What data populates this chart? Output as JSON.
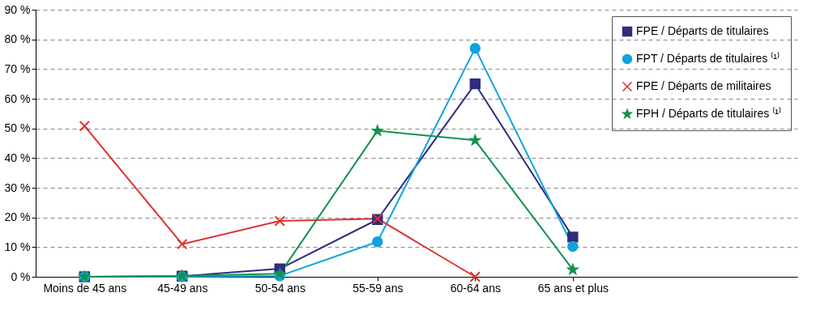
{
  "chart_data": {
    "type": "line",
    "categories": [
      "Moins de 45 ans",
      "45-49 ans",
      "50-54 ans",
      "55-59 ans",
      "60-64 ans",
      "65 ans et plus"
    ],
    "series": [
      {
        "name": "FPE / Départs de titulaires",
        "color": "#2e2d7f",
        "marker": "square",
        "values": [
          0,
          0.2,
          2.7,
          19.3,
          65,
          13.4
        ]
      },
      {
        "name": "FPT / Départs de titulaires ⁽¹⁾",
        "color": "#0fa3dc",
        "marker": "circle",
        "values": [
          0,
          0,
          0.3,
          11.8,
          77,
          10.2
        ]
      },
      {
        "name": "FPE / Départs de militaires",
        "color": "#e0312f",
        "marker": "cross",
        "values": [
          50.8,
          11,
          18.8,
          19.6,
          0,
          null
        ]
      },
      {
        "name": "FPH / Départs de titulaires ⁽¹⁾",
        "color": "#12924a",
        "marker": "star",
        "values": [
          0,
          0.3,
          1,
          49.2,
          46,
          2.4
        ]
      }
    ],
    "ylim": [
      0,
      90
    ],
    "yticks": [
      {
        "value": 0,
        "label": "0 %"
      },
      {
        "value": 10,
        "label": "10 %"
      },
      {
        "value": 20,
        "label": "20 %"
      },
      {
        "value": 30,
        "label": "30 %"
      },
      {
        "value": 40,
        "label": "40 %"
      },
      {
        "value": 50,
        "label": "50 %"
      },
      {
        "value": 60,
        "label": "60 %"
      },
      {
        "value": 70,
        "label": "70 %"
      },
      {
        "value": 80,
        "label": "80 %"
      },
      {
        "value": 90,
        "label": "90 %"
      }
    ],
    "grid": "y",
    "legend": "top right",
    "line_style": "solid"
  }
}
